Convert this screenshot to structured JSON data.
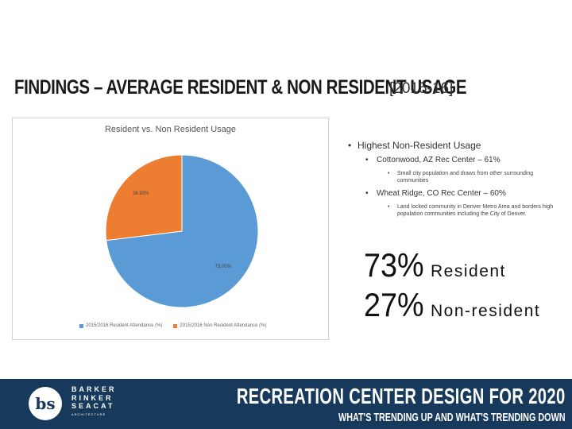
{
  "slide": {
    "title": "FINDINGS – AVERAGE RESIDENT & NON RESIDENT USAGE",
    "subtitle": "[2015-16]"
  },
  "chart_data": {
    "type": "pie",
    "title": "Resident vs. Non Resident Usage",
    "categories": [
      "2015/2016 Resident Attendance (%)",
      "2015/2016 Non Resident Attendance (%)"
    ],
    "values": [
      73.0,
      26.9
    ],
    "data_labels": [
      "73.00%",
      "26.93%"
    ],
    "colors": [
      "#5b9bd5",
      "#ed7d31"
    ],
    "legend_position": "bottom"
  },
  "bullets": {
    "heading": "Highest Non-Resident Usage",
    "items": [
      {
        "label": "Cottonwood, AZ Rec Center – 61%",
        "note": "Small city population and draws from other surrounding communities"
      },
      {
        "label": "Wheat Ridge, CO Rec Center – 60%",
        "note": "Land locked community in Denver Metro Area and borders high population communities including the City of Denver."
      }
    ]
  },
  "stats": [
    {
      "pct": "73%",
      "label": "Resident"
    },
    {
      "pct": "27%",
      "label": "Non-resident"
    }
  ],
  "footer": {
    "logo_mark": "bs",
    "logo_lines": [
      "BARKER",
      "RINKER",
      "SEACAT",
      "ARCHITECTURE"
    ],
    "title": "RECREATION CENTER DESIGN FOR 2020",
    "subtitle": "WHAT'S TRENDING UP AND WHAT'S TRENDING DOWN",
    "color": "#17395c"
  }
}
